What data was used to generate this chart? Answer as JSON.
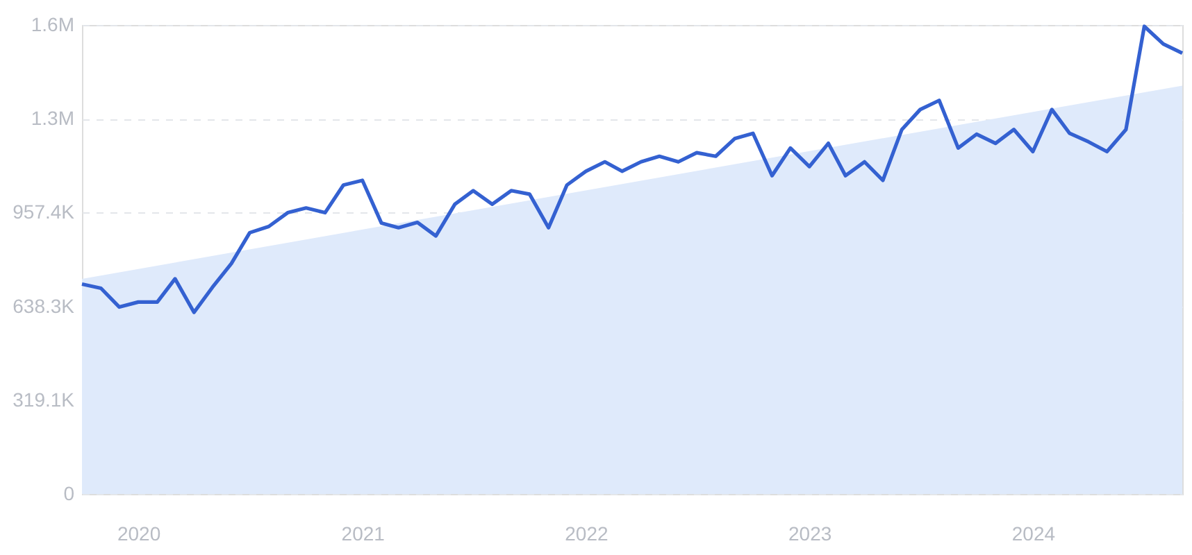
{
  "chart_data": {
    "type": "line",
    "x": [
      "2019-10",
      "2019-11",
      "2019-12",
      "2020-01",
      "2020-02",
      "2020-03",
      "2020-04",
      "2020-05",
      "2020-06",
      "2020-07",
      "2020-08",
      "2020-09",
      "2020-10",
      "2020-11",
      "2020-12",
      "2021-01",
      "2021-02",
      "2021-03",
      "2021-04",
      "2021-05",
      "2021-06",
      "2021-07",
      "2021-08",
      "2021-09",
      "2021-10",
      "2021-11",
      "2021-12",
      "2022-01",
      "2022-02",
      "2022-03",
      "2022-04",
      "2022-05",
      "2022-06",
      "2022-07",
      "2022-08",
      "2022-09",
      "2022-10",
      "2022-11",
      "2022-12",
      "2023-01",
      "2023-02",
      "2023-03",
      "2023-04",
      "2023-05",
      "2023-06",
      "2023-07",
      "2023-08",
      "2023-09",
      "2023-10",
      "2023-11",
      "2023-12",
      "2024-01",
      "2024-02",
      "2024-03",
      "2024-04",
      "2024-05",
      "2024-06",
      "2024-07",
      "2024-08",
      "2024-09"
    ],
    "series": [
      {
        "type": "area",
        "color": "#dfeafb",
        "x": [
          "2019-10",
          "2024-09"
        ],
        "values": [
          732000,
          1389000
        ]
      },
      {
        "color": "#3461d1",
        "values": [
          714000,
          700000,
          636000,
          653000,
          653000,
          732000,
          618000,
          703000,
          784000,
          889000,
          910000,
          957000,
          973000,
          957000,
          1051000,
          1067000,
          922000,
          906000,
          924000,
          878000,
          986000,
          1032000,
          986000,
          1032000,
          1020000,
          906000,
          1051000,
          1098000,
          1130000,
          1098000,
          1130000,
          1149000,
          1130000,
          1161000,
          1149000,
          1209000,
          1227000,
          1083000,
          1177000,
          1114000,
          1193000,
          1083000,
          1130000,
          1067000,
          1240000,
          1308000,
          1339000,
          1177000,
          1224000,
          1193000,
          1240000,
          1165000,
          1308000,
          1227000,
          1198000,
          1165000,
          1240000,
          1591000,
          1531000,
          1500000
        ]
      }
    ],
    "xlim": [
      "2019-10",
      "2024-09"
    ],
    "xticks": [
      {
        "value": "2020",
        "label": "2020"
      },
      {
        "value": "2021",
        "label": "2021"
      },
      {
        "value": "2022",
        "label": "2022"
      },
      {
        "value": "2023",
        "label": "2023"
      },
      {
        "value": "2024",
        "label": "2024"
      }
    ],
    "ylim": [
      0,
      1595700
    ],
    "yticks": [
      {
        "value": 0,
        "label": "0"
      },
      {
        "value": 319100,
        "label": "319.1K"
      },
      {
        "value": 638300,
        "label": "638.3K"
      },
      {
        "value": 957400,
        "label": "957.4K"
      },
      {
        "value": 1276600,
        "label": "1.3M"
      },
      {
        "value": 1595700,
        "label": "1.6M"
      }
    ],
    "grid": "y",
    "marker": "none",
    "line_style": "solid"
  }
}
